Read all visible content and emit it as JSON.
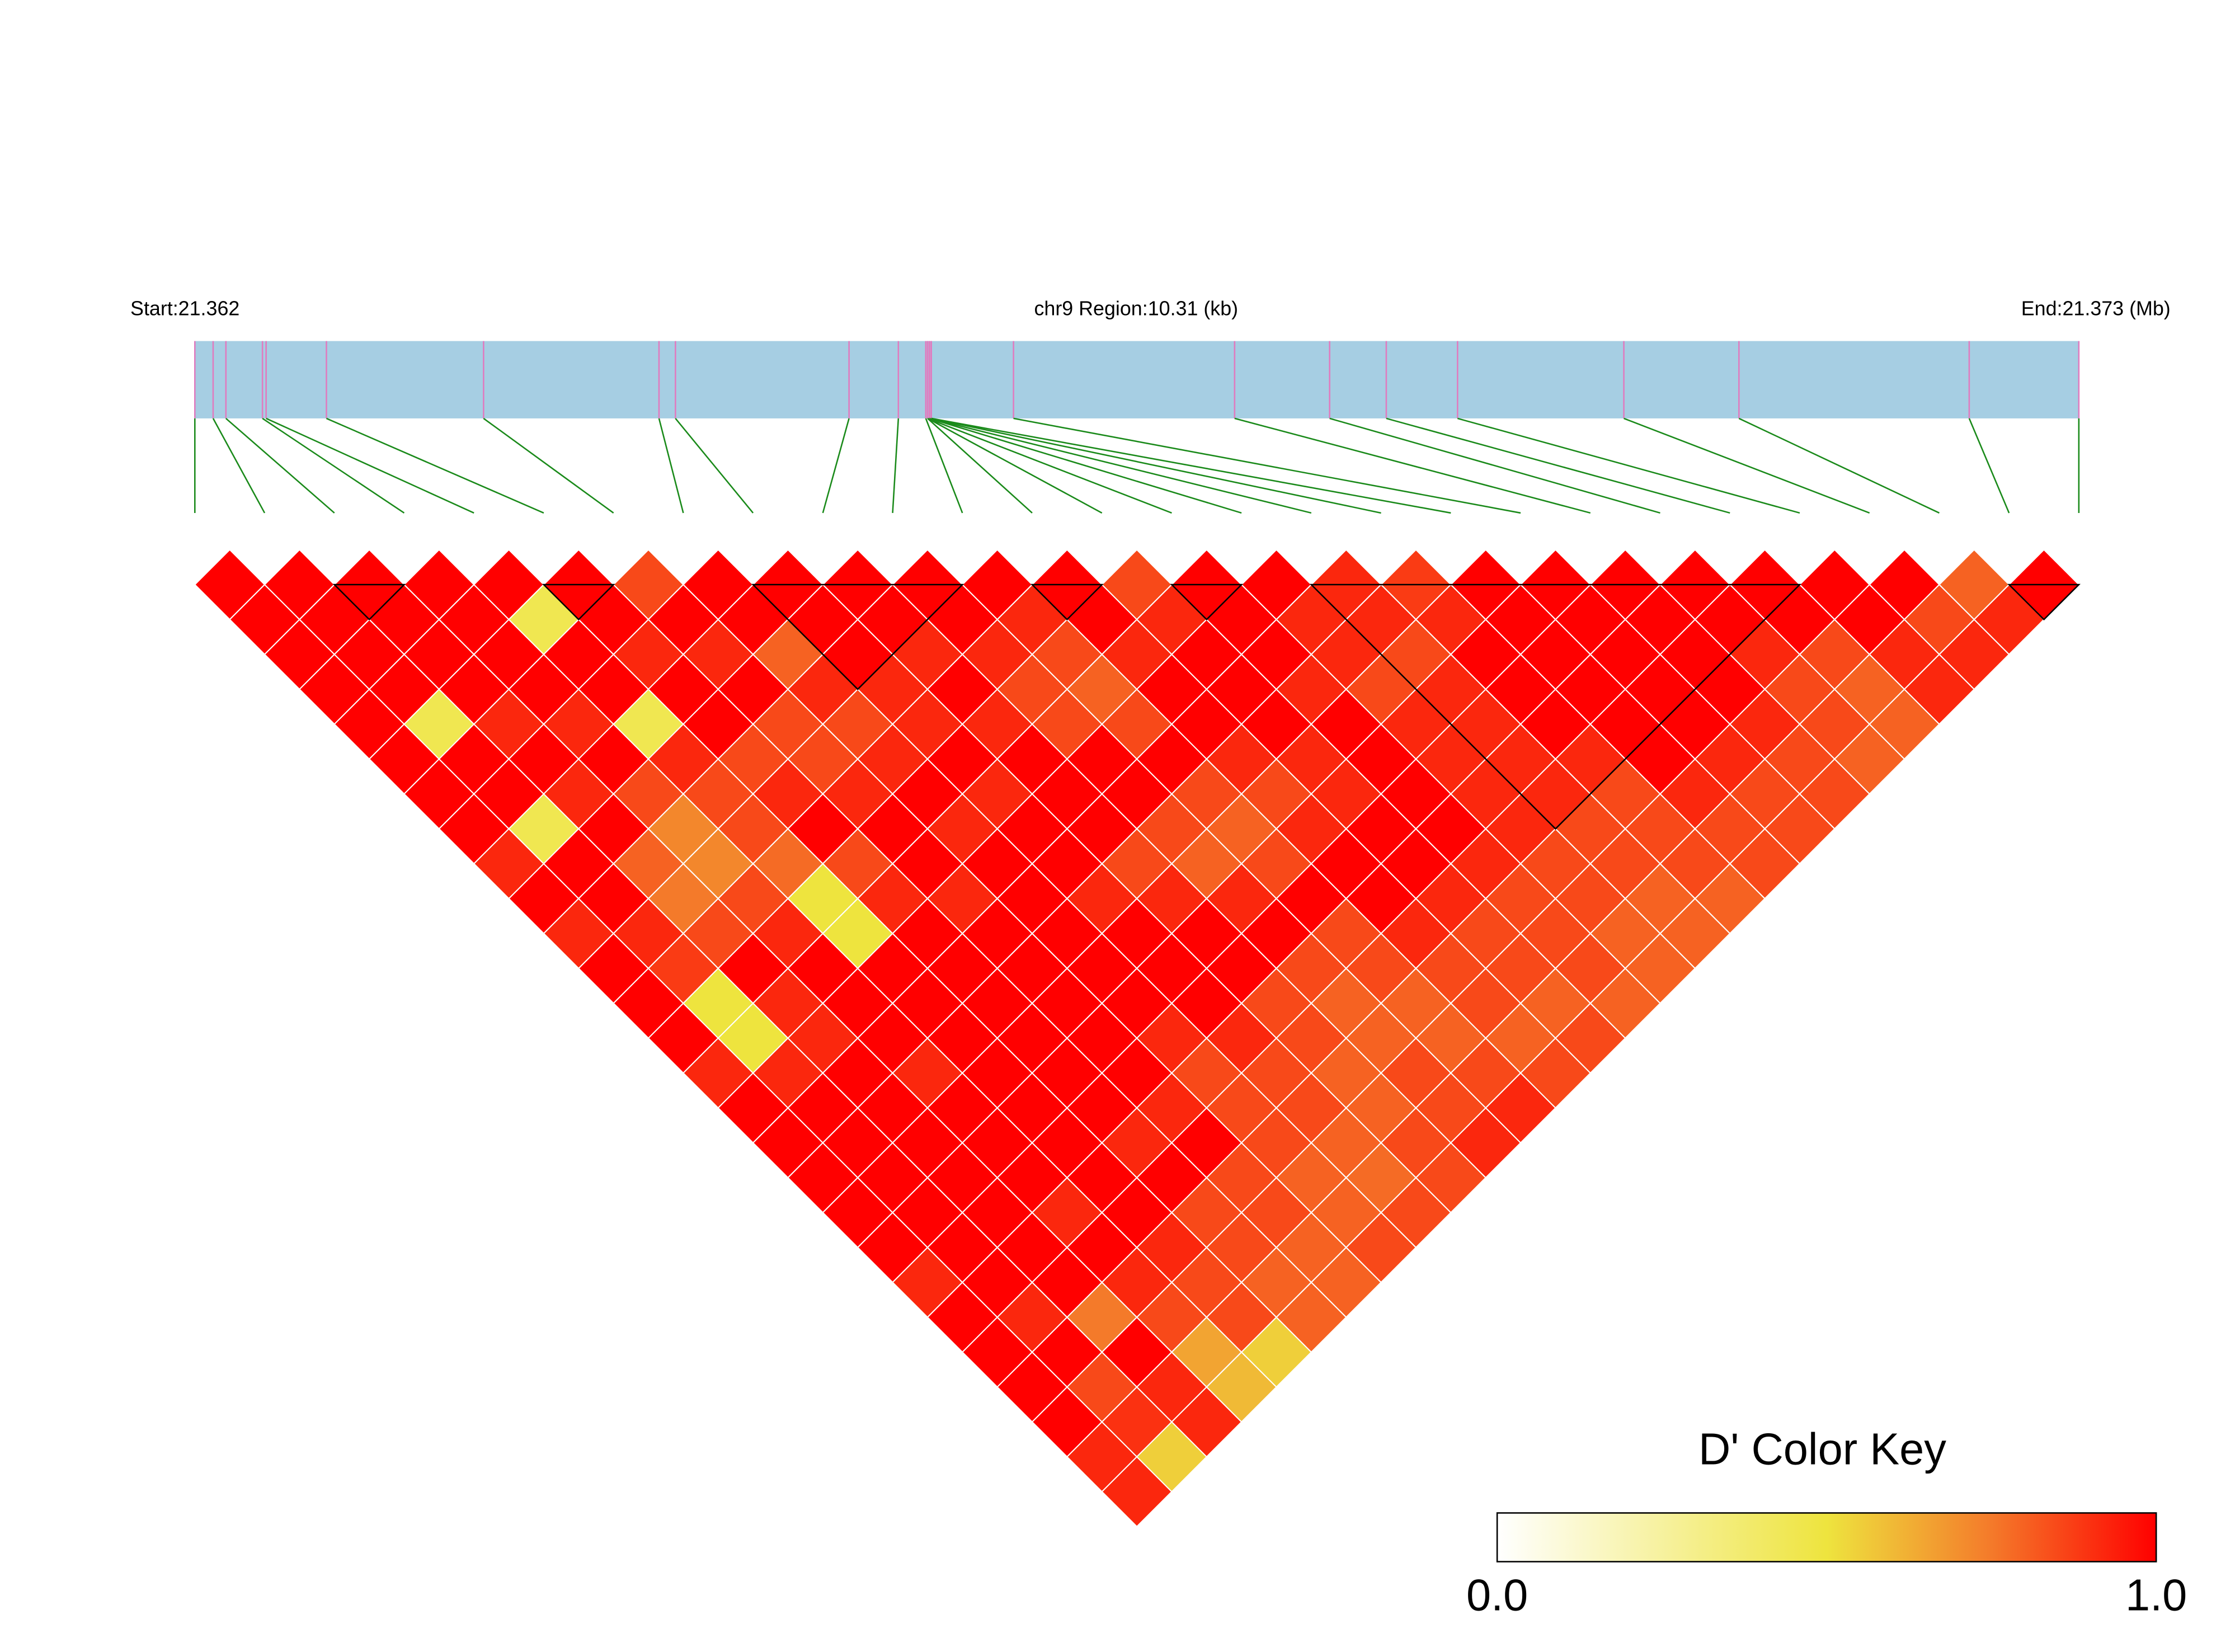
{
  "chart_data": {
    "type": "ld-heatmap",
    "start_label": "Start:21.362",
    "region_label": "chr9 Region:10.31 (kb)",
    "end_label": "End:21.373 (Mb)",
    "xlim": [
      0,
      10.31
    ],
    "snp_positions": [
      0,
      0.1,
      0.17,
      0.37,
      0.39,
      0.72,
      1.58,
      2.54,
      2.63,
      3.58,
      3.85,
      4.0,
      4.01,
      4.01,
      4.01,
      4.02,
      4.02,
      4.03,
      4.03,
      4.48,
      5.69,
      6.21,
      6.52,
      6.91,
      7.82,
      8.45,
      9.71,
      10.31
    ],
    "matrix": [
      [
        1,
        1,
        1,
        1,
        1,
        1,
        1,
        1,
        0.92,
        1,
        0.92,
        1,
        1,
        1,
        0.92,
        1,
        1,
        1,
        1,
        1,
        0.92,
        1,
        1,
        1,
        1,
        0.92,
        0.92
      ],
      [
        1,
        1,
        1,
        1,
        0.45,
        1,
        1,
        0.45,
        1,
        1,
        0.92,
        0.88,
        0.5,
        0.5,
        0.92,
        1,
        1,
        1,
        1,
        1,
        1,
        0.92,
        1,
        0.85,
        0.9,
        0.55
      ],
      [
        1,
        1,
        1,
        1,
        0.92,
        1,
        0.92,
        1,
        0.8,
        0.75,
        0.85,
        1,
        0.92,
        0.92,
        1,
        1,
        1,
        1,
        1,
        1,
        1,
        0.75,
        1,
        0.92,
        0.92
      ],
      [
        1,
        1,
        1,
        1,
        0.92,
        1,
        0.85,
        0.72,
        0.72,
        0.85,
        0.92,
        1,
        1,
        1,
        0.92,
        1,
        1,
        1,
        0.92,
        1,
        0.92,
        0.85,
        0.65,
        0.6
      ],
      [
        1,
        0.45,
        1,
        1,
        0.45,
        0.92,
        0.85,
        0.85,
        0.78,
        0.5,
        0.5,
        1,
        1,
        1,
        1,
        1,
        1,
        1,
        1,
        0.92,
        0.85,
        0.85,
        0.55
      ],
      [
        1,
        1,
        0.92,
        1,
        1,
        0.85,
        0.92,
        1,
        0.85,
        0.92,
        1,
        1,
        1,
        1,
        1,
        1,
        0.92,
        1,
        0.85,
        0.85,
        0.8,
        0.8
      ],
      [
        0.85,
        1,
        0.92,
        1,
        0.85,
        0.85,
        0.92,
        1,
        1,
        0.92,
        1,
        1,
        1,
        1,
        1,
        0.92,
        1,
        0.85,
        0.85,
        0.8,
        0.8
      ],
      [
        1,
        1,
        0.8,
        0.92,
        0.85,
        0.92,
        1,
        0.92,
        1,
        1,
        1,
        1,
        1,
        0.92,
        0.85,
        0.85,
        0.85,
        0.8,
        0.8,
        0.85
      ],
      [
        1,
        1,
        1,
        0.92,
        0.92,
        1,
        0.92,
        1,
        1,
        0.92,
        1,
        1,
        1,
        0.92,
        0.85,
        0.85,
        0.8,
        0.78,
        0.85
      ],
      [
        1,
        1,
        0.92,
        1,
        0.92,
        1,
        1,
        1,
        0.85,
        0.92,
        1,
        1,
        0.85,
        0.85,
        0.8,
        0.8,
        0.85,
        0.85
      ],
      [
        1,
        1,
        0.92,
        0.85,
        0.85,
        1,
        1,
        0.85,
        0.8,
        0.92,
        1,
        0.85,
        0.8,
        0.8,
        0.85,
        0.85,
        0.92
      ],
      [
        1,
        0.92,
        0.85,
        0.8,
        0.85,
        1,
        0.85,
        0.8,
        0.85,
        1,
        0.85,
        0.85,
        0.8,
        0.8,
        0.85,
        0.92
      ],
      [
        1,
        1,
        0.92,
        1,
        1,
        0.92,
        0.85,
        0.92,
        1,
        1,
        0.92,
        0.85,
        0.85,
        0.8,
        0.85
      ],
      [
        0.85,
        0.92,
        1,
        1,
        1,
        0.92,
        0.92,
        1,
        1,
        0.92,
        0.85,
        0.85,
        0.8,
        0.85
      ],
      [
        1,
        1,
        1,
        0.92,
        1,
        1,
        1,
        1,
        0.92,
        0.85,
        0.85,
        0.85,
        0.8
      ],
      [
        1,
        0.92,
        0.92,
        0.85,
        0.92,
        0.92,
        0.92,
        0.92,
        0.85,
        0.85,
        0.8,
        0.8
      ],
      [
        0.92,
        0.92,
        0.85,
        0.92,
        0.92,
        0.92,
        0.92,
        0.85,
        0.85,
        0.8,
        0.8
      ],
      [
        0.88,
        0.92,
        1,
        1,
        1,
        0.92,
        0.85,
        0.85,
        0.85,
        0.8
      ],
      [
        1,
        1,
        1,
        1,
        1,
        1,
        0.92,
        0.85,
        0.85
      ],
      [
        1,
        1,
        1,
        1,
        1,
        0.92,
        0.85,
        0.85
      ],
      [
        1,
        1,
        1,
        1,
        0.92,
        0.85,
        0.85
      ],
      [
        1,
        1,
        0.92,
        0.85,
        0.85,
        0.8
      ],
      [
        1,
        1,
        0.85,
        0.8,
        0.8
      ],
      [
        1,
        1,
        0.92,
        0.92
      ],
      [
        1,
        0.85,
        0.92
      ],
      [
        0.8,
        0.92
      ],
      [
        1
      ]
    ],
    "blocks": [
      [
        2,
        3
      ],
      [
        5,
        6
      ],
      [
        8,
        11
      ],
      [
        12,
        13
      ],
      [
        14,
        15
      ],
      [
        16,
        23
      ],
      [
        26,
        27
      ]
    ],
    "color_stops": [
      {
        "value": 0,
        "color": "#ffffff"
      },
      {
        "value": 0.5,
        "color": "#eee43e"
      },
      {
        "value": 0.75,
        "color": "#f47a2a"
      },
      {
        "value": 1,
        "color": "#ff0000"
      }
    ],
    "colorbar_title": "D' Color Key",
    "colorbar_ticks": [
      {
        "value": 0,
        "label": "0.0"
      },
      {
        "value": 1,
        "label": "1.0"
      }
    ]
  }
}
